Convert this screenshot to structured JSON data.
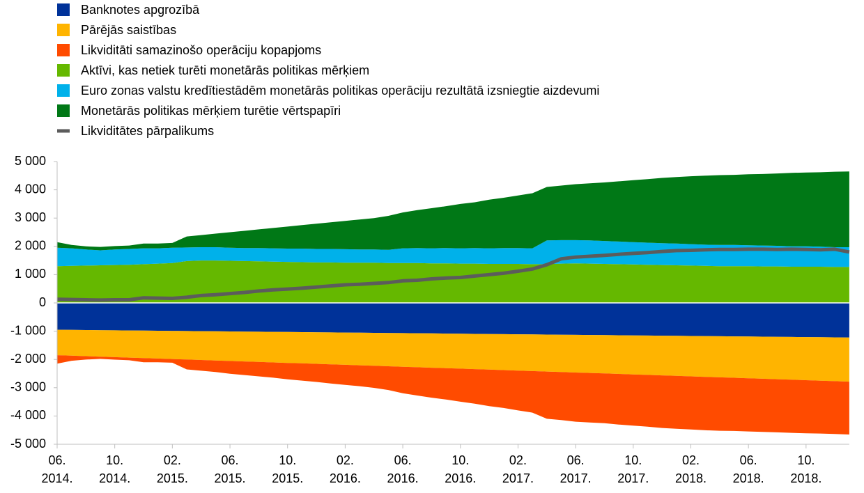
{
  "chart_data": {
    "type": "stacked-area",
    "x": [
      "2014-06",
      "2014-07",
      "2014-08",
      "2014-09",
      "2014-10",
      "2014-11",
      "2014-12",
      "2015-01",
      "2015-02",
      "2015-03",
      "2015-04",
      "2015-05",
      "2015-06",
      "2015-07",
      "2015-08",
      "2015-09",
      "2015-10",
      "2015-11",
      "2015-12",
      "2016-01",
      "2016-02",
      "2016-03",
      "2016-04",
      "2016-05",
      "2016-06",
      "2016-07",
      "2016-08",
      "2016-09",
      "2016-10",
      "2016-11",
      "2016-12",
      "2017-01",
      "2017-02",
      "2017-03",
      "2017-04",
      "2017-05",
      "2017-06",
      "2017-07",
      "2017-08",
      "2017-09",
      "2017-10",
      "2017-11",
      "2017-12",
      "2018-01",
      "2018-02",
      "2018-03",
      "2018-04",
      "2018-05",
      "2018-06",
      "2018-07",
      "2018-08",
      "2018-09",
      "2018-10",
      "2018-11",
      "2018-12",
      "2019-01"
    ],
    "series": [
      {
        "name": "Banknotes apgrozībā",
        "color": "#003299",
        "values": [
          -950,
          -955,
          -960,
          -965,
          -970,
          -975,
          -980,
          -985,
          -990,
          -995,
          -1000,
          -1005,
          -1010,
          -1015,
          -1020,
          -1025,
          -1030,
          -1035,
          -1040,
          -1045,
          -1050,
          -1055,
          -1060,
          -1065,
          -1070,
          -1075,
          -1080,
          -1085,
          -1090,
          -1095,
          -1100,
          -1105,
          -1110,
          -1115,
          -1120,
          -1125,
          -1130,
          -1135,
          -1140,
          -1145,
          -1150,
          -1155,
          -1160,
          -1165,
          -1170,
          -1175,
          -1180,
          -1185,
          -1190,
          -1195,
          -1200,
          -1205,
          -1210,
          -1215,
          -1220,
          -1225
        ]
      },
      {
        "name": "Pārējās saistības",
        "color": "#ffb400",
        "values": [
          -900,
          -912,
          -924,
          -936,
          -948,
          -960,
          -972,
          -984,
          -996,
          -1008,
          -1020,
          -1032,
          -1044,
          -1056,
          -1068,
          -1080,
          -1092,
          -1104,
          -1116,
          -1128,
          -1140,
          -1152,
          -1164,
          -1176,
          -1188,
          -1200,
          -1212,
          -1224,
          -1236,
          -1248,
          -1260,
          -1272,
          -1284,
          -1296,
          -1308,
          -1320,
          -1332,
          -1344,
          -1356,
          -1368,
          -1380,
          -1392,
          -1404,
          -1416,
          -1428,
          -1440,
          -1452,
          -1464,
          -1476,
          -1488,
          -1500,
          -1512,
          -1524,
          -1536,
          -1548,
          -1560
        ]
      },
      {
        "name": "Likviditāti samazinošo operāciju kopapjoms",
        "color": "#ff4b00",
        "values": [
          -300,
          -180,
          -120,
          -80,
          -90,
          -95,
          -150,
          -130,
          -130,
          -350,
          -380,
          -410,
          -450,
          -480,
          -510,
          -540,
          -580,
          -610,
          -640,
          -680,
          -710,
          -740,
          -780,
          -840,
          -940,
          -1000,
          -1060,
          -1110,
          -1170,
          -1220,
          -1290,
          -1340,
          -1410,
          -1470,
          -1670,
          -1700,
          -1740,
          -1750,
          -1760,
          -1790,
          -1810,
          -1830,
          -1860,
          -1870,
          -1880,
          -1890,
          -1890,
          -1880,
          -1880,
          -1880,
          -1880,
          -1880,
          -1880,
          -1870,
          -1870,
          -1870
        ]
      },
      {
        "name": "Aktīvi, kas netiek turēti monetārās politikas mērķiem",
        "color": "#65b800",
        "values": [
          1300,
          1310,
          1320,
          1330,
          1340,
          1350,
          1370,
          1390,
          1410,
          1480,
          1500,
          1500,
          1490,
          1480,
          1470,
          1460,
          1450,
          1440,
          1430,
          1430,
          1420,
          1420,
          1420,
          1410,
          1410,
          1410,
          1400,
          1400,
          1390,
          1390,
          1380,
          1380,
          1380,
          1370,
          1370,
          1390,
          1400,
          1390,
          1380,
          1370,
          1360,
          1350,
          1340,
          1330,
          1320,
          1310,
          1300,
          1300,
          1300,
          1290,
          1290,
          1280,
          1280,
          1280,
          1270,
          1270
        ]
      },
      {
        "name": "Euro zonas valstu kredītiestādēm monetārās politikas operāciju rezultātā izsniegtie aizdevumi",
        "color": "#00b1ea",
        "values": [
          650,
          620,
          570,
          530,
          550,
          560,
          560,
          540,
          540,
          480,
          470,
          470,
          460,
          460,
          470,
          470,
          470,
          480,
          480,
          480,
          480,
          470,
          470,
          470,
          520,
          530,
          530,
          540,
          540,
          550,
          550,
          560,
          560,
          560,
          840,
          830,
          820,
          820,
          810,
          800,
          790,
          780,
          770,
          770,
          760,
          750,
          750,
          750,
          740,
          740,
          730,
          720,
          720,
          710,
          700,
          700
        ]
      },
      {
        "name": "Monetārās politikas mērķiem turētie vērtspapīri",
        "color": "#007816",
        "values": [
          200,
          120,
          110,
          120,
          120,
          120,
          170,
          170,
          170,
          390,
          430,
          480,
          550,
          610,
          660,
          720,
          780,
          830,
          890,
          940,
          1000,
          1060,
          1110,
          1200,
          1270,
          1340,
          1420,
          1480,
          1570,
          1620,
          1720,
          1780,
          1860,
          1950,
          1890,
          1930,
          1980,
          2020,
          2070,
          2130,
          2190,
          2250,
          2310,
          2350,
          2400,
          2440,
          2470,
          2480,
          2510,
          2530,
          2560,
          2600,
          2610,
          2630,
          2670,
          2680
        ]
      },
      {
        "name": "Likviditātes pārpalikums",
        "color": "#5c5c5c",
        "type": "line",
        "values": [
          130,
          120,
          110,
          100,
          110,
          110,
          180,
          170,
          160,
          200,
          260,
          290,
          330,
          370,
          420,
          460,
          490,
          520,
          560,
          600,
          640,
          660,
          690,
          720,
          780,
          800,
          850,
          880,
          900,
          950,
          1000,
          1050,
          1120,
          1200,
          1350,
          1560,
          1620,
          1650,
          1680,
          1720,
          1750,
          1780,
          1820,
          1850,
          1860,
          1880,
          1890,
          1890,
          1900,
          1900,
          1890,
          1900,
          1890,
          1880,
          1900,
          1800
        ]
      }
    ],
    "ylim": [
      -5000,
      5000
    ],
    "yticks": [
      {
        "value": 5000,
        "label": "5 000"
      },
      {
        "value": 4000,
        "label": "4 000"
      },
      {
        "value": 3000,
        "label": "3 000"
      },
      {
        "value": 2000,
        "label": "2 000"
      },
      {
        "value": 1000,
        "label": "1 000"
      },
      0,
      {
        "value": -1000,
        "label": "-1 000"
      },
      {
        "value": -2000,
        "label": "-2 000"
      },
      {
        "value": -3000,
        "label": "-3 000"
      },
      {
        "value": -4000,
        "label": "-4 000"
      },
      {
        "value": -5000,
        "label": "-5 000"
      }
    ],
    "xticks": [
      {
        "value": "2014-06",
        "label": [
          "06.",
          "2014."
        ]
      },
      {
        "value": "2014-10",
        "label": [
          "10.",
          "2014."
        ]
      },
      {
        "value": "2015-02",
        "label": [
          "02.",
          "2015."
        ]
      },
      {
        "value": "2015-06",
        "label": [
          "06.",
          "2015."
        ]
      },
      {
        "value": "2015-10",
        "label": [
          "10.",
          "2015."
        ]
      },
      {
        "value": "2016-02",
        "label": [
          "02.",
          "2016."
        ]
      },
      {
        "value": "2016-06",
        "label": [
          "06.",
          "2016."
        ]
      },
      {
        "value": "2016-10",
        "label": [
          "10.",
          "2016."
        ]
      },
      {
        "value": "2017-02",
        "label": [
          "02.",
          "2017."
        ]
      },
      {
        "value": "2017-06",
        "label": [
          "06.",
          "2017."
        ]
      },
      {
        "value": "2017-10",
        "label": [
          "10.",
          "2017."
        ]
      },
      {
        "value": "2018-02",
        "label": [
          "02.",
          "2018."
        ]
      },
      {
        "value": "2018-06",
        "label": [
          "06.",
          "2018."
        ]
      },
      {
        "value": "2018-10",
        "label": [
          "10.",
          "2018."
        ]
      }
    ],
    "legend": "top-left",
    "grid": false
  }
}
